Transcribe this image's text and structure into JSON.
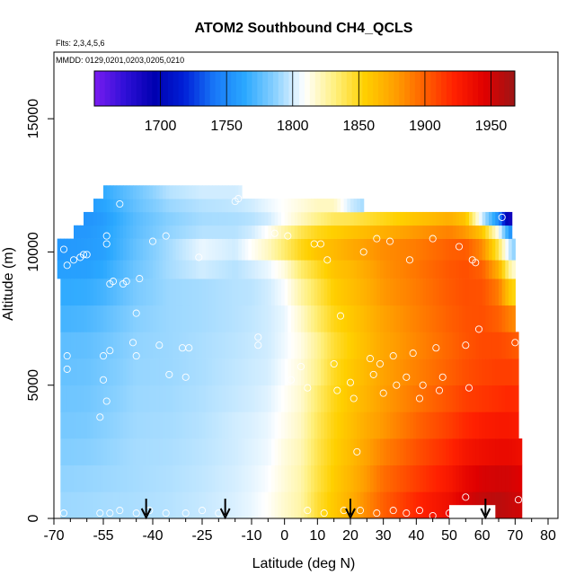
{
  "chart_data": {
    "type": "heatmap",
    "title": "ATOM2 Southbound CH4_QCLS",
    "subtitle_lines": [
      "Flts: 2,3,4,5,6",
      "MMDD: 0129,0201,0203,0205,0210"
    ],
    "xlabel": "Latitude (deg N)",
    "ylabel": "Altitude (m)",
    "xlim": [
      -70,
      83
    ],
    "ylim": [
      0,
      17500
    ],
    "x_ticks": [
      -70,
      -55,
      -40,
      -25,
      -10,
      0,
      10,
      20,
      30,
      40,
      50,
      60,
      70,
      80
    ],
    "x_tick_labels": [
      "-70",
      "-55",
      "-40",
      "-25",
      "-10",
      "0",
      "10",
      "20",
      "30",
      "40",
      "50",
      "60",
      "70",
      "80"
    ],
    "x_minor_ticks": [
      -65,
      -60,
      -50,
      -45,
      -35,
      -30,
      -20,
      -15,
      -5,
      5,
      15,
      25,
      35,
      45,
      55,
      65,
      75
    ],
    "y_ticks": [
      0,
      5000,
      10000,
      15000
    ],
    "y_tick_labels": [
      "0",
      "5000",
      "10000",
      "15000"
    ],
    "colorbar": {
      "min": 1650,
      "max": 1968,
      "ticks": [
        1700,
        1750,
        1800,
        1850,
        1900,
        1950
      ],
      "tick_labels": [
        "1700",
        "1750",
        "1800",
        "1850",
        "1900",
        "1950"
      ],
      "colors": [
        "#7a1cf0",
        "#3010d8",
        "#0000b0",
        "#0020d8",
        "#1878f8",
        "#2aa8ff",
        "#88d0ff",
        "#ffffff",
        "#fff080",
        "#ffd000",
        "#ffa000",
        "#ff6000",
        "#ff2000",
        "#e00000",
        "#9c1616"
      ]
    },
    "grid": false,
    "profile_arrows_latitude": [
      -42,
      -18,
      20,
      61
    ],
    "layers": [
      {
        "ybot": 0,
        "ytop": 1000,
        "xmin": -68,
        "xmax": 72
      },
      {
        "ybot": 1000,
        "ytop": 2000,
        "xmin": -68,
        "xmax": 72
      },
      {
        "ybot": 2000,
        "ytop": 3000,
        "xmin": -68,
        "xmax": 72
      },
      {
        "ybot": 3000,
        "ytop": 4000,
        "xmin": -68,
        "xmax": 71
      },
      {
        "ybot": 4000,
        "ytop": 5000,
        "xmin": -68,
        "xmax": 71
      },
      {
        "ybot": 5000,
        "ytop": 6000,
        "xmin": -68,
        "xmax": 71
      },
      {
        "ybot": 6000,
        "ytop": 7000,
        "xmin": -68,
        "xmax": 71
      },
      {
        "ybot": 7000,
        "ytop": 8000,
        "xmin": -68,
        "xmax": 70
      },
      {
        "ybot": 8000,
        "ytop": 9000,
        "xmin": -68,
        "xmax": 70
      },
      {
        "ybot": 9000,
        "ytop": 9700,
        "xmin": -69,
        "xmax": 70
      },
      {
        "ybot": 9700,
        "ytop": 10500,
        "xmin": -69,
        "xmax": 70
      },
      {
        "ybot": 10500,
        "ytop": 11000,
        "xmin": -64,
        "xmax": 69
      },
      {
        "ybot": 11000,
        "ytop": 11500,
        "xmin": -61,
        "xmax": 69
      },
      {
        "ybot": 11500,
        "ytop": 12000,
        "xmin": -58,
        "xmax": 24
      },
      {
        "ybot": 12000,
        "ytop": 12500,
        "xmin": -55,
        "xmax": -13
      }
    ],
    "missing_region": {
      "x": [
        50,
        64
      ],
      "y": [
        0,
        500
      ]
    },
    "profiles": [
      {
        "lat": -68,
        "v": [
          1790,
          1788,
          1785,
          1782,
          1780,
          1778,
          1776,
          1770,
          1765,
          1760,
          1756,
          1755,
          1755,
          1756,
          1760
        ]
      },
      {
        "lat": -60,
        "v": [
          1791,
          1789,
          1786,
          1783,
          1781,
          1779,
          1777,
          1772,
          1766,
          1760,
          1758,
          1756,
          1754,
          1757,
          1762
        ]
      },
      {
        "lat": -55,
        "v": [
          1792,
          1790,
          1788,
          1786,
          1784,
          1782,
          1780,
          1776,
          1770,
          1764,
          1760,
          1760,
          1758,
          1762,
          1765
        ]
      },
      {
        "lat": -45,
        "v": [
          1793,
          1792,
          1792,
          1791,
          1790,
          1789,
          1788,
          1786,
          1783,
          1780,
          1778,
          1776,
          1775,
          1778,
          1780
        ]
      },
      {
        "lat": -35,
        "v": [
          1795,
          1794,
          1793,
          1792,
          1791,
          1790,
          1790,
          1790,
          1790,
          1792,
          1792,
          1788,
          1786,
          1790,
          1795
        ]
      },
      {
        "lat": -25,
        "v": [
          1798,
          1797,
          1796,
          1795,
          1794,
          1793,
          1793,
          1792,
          1792,
          1800,
          1805,
          1795,
          1792,
          1795,
          1800
        ]
      },
      {
        "lat": -15,
        "v": [
          1802,
          1801,
          1800,
          1800,
          1798,
          1797,
          1796,
          1795,
          1795,
          1795,
          1800,
          1795,
          1793,
          1797,
          1800
        ]
      },
      {
        "lat": -10,
        "v": [
          1805,
          1804,
          1803,
          1802,
          1800,
          1799,
          1798,
          1797,
          1796,
          1800,
          1810,
          1800,
          1795,
          1800,
          1805
        ]
      },
      {
        "lat": -5,
        "v": [
          1810,
          1808,
          1806,
          1805,
          1803,
          1801,
          1800,
          1800,
          1800,
          1805,
          1820,
          1810,
          1800,
          1805,
          1808
        ]
      },
      {
        "lat": 0,
        "v": [
          1818,
          1816,
          1815,
          1812,
          1810,
          1808,
          1806,
          1805,
          1808,
          1815,
          1835,
          1825,
          1810,
          1810,
          1810
        ]
      },
      {
        "lat": 5,
        "v": [
          1825,
          1824,
          1822,
          1820,
          1818,
          1816,
          1814,
          1818,
          1825,
          1835,
          1850,
          1840,
          1820,
          1815,
          1810
        ]
      },
      {
        "lat": 10,
        "v": [
          1845,
          1842,
          1840,
          1838,
          1835,
          1830,
          1828,
          1835,
          1840,
          1848,
          1860,
          1850,
          1830,
          1820,
          1810
        ]
      },
      {
        "lat": 15,
        "v": [
          1858,
          1856,
          1854,
          1852,
          1850,
          1848,
          1845,
          1850,
          1855,
          1860,
          1865,
          1855,
          1838,
          1820,
          1810
        ]
      },
      {
        "lat": 20,
        "v": [
          1870,
          1867,
          1864,
          1862,
          1860,
          1858,
          1855,
          1858,
          1862,
          1865,
          1872,
          1860,
          1840,
          1800,
          1790
        ]
      },
      {
        "lat": 25,
        "v": [
          1885,
          1880,
          1876,
          1872,
          1868,
          1866,
          1864,
          1866,
          1870,
          1873,
          1878,
          1865,
          1845,
          1790,
          1790
        ]
      },
      {
        "lat": 30,
        "v": [
          1900,
          1895,
          1888,
          1880,
          1878,
          1876,
          1874,
          1876,
          1880,
          1882,
          1884,
          1870,
          1850,
          1790,
          1790
        ]
      },
      {
        "lat": 40,
        "v": [
          1920,
          1912,
          1905,
          1898,
          1892,
          1888,
          1886,
          1888,
          1890,
          1892,
          1890,
          1880,
          1860,
          1790,
          1790
        ]
      },
      {
        "lat": 50,
        "v": [
          1935,
          1928,
          1920,
          1912,
          1905,
          1900,
          1898,
          1900,
          1902,
          1903,
          1900,
          1888,
          1870,
          1790,
          1790
        ]
      },
      {
        "lat": 55,
        "v": [
          1948,
          1940,
          1930,
          1920,
          1912,
          1906,
          1904,
          1905,
          1906,
          1906,
          1902,
          1880,
          1860,
          1790,
          1790
        ]
      },
      {
        "lat": 60,
        "v": [
          1955,
          1948,
          1935,
          1925,
          1915,
          1910,
          1908,
          1906,
          1905,
          1900,
          1885,
          1860,
          1800,
          1790,
          1790
        ]
      },
      {
        "lat": 65,
        "v": [
          1958,
          1950,
          1938,
          1928,
          1918,
          1912,
          1908,
          1900,
          1890,
          1870,
          1840,
          1810,
          1750,
          1790,
          1790
        ]
      },
      {
        "lat": 68,
        "v": [
          1955,
          1950,
          1938,
          1928,
          1920,
          1912,
          1905,
          1890,
          1860,
          1830,
          1800,
          1760,
          1690,
          1790,
          1790
        ]
      },
      {
        "lat": 72,
        "v": [
          1950,
          1945,
          1935,
          1925,
          1918,
          1910,
          1900,
          1880,
          1840,
          1800,
          1770,
          1720,
          1680,
          1790,
          1790
        ]
      }
    ],
    "observations": [
      [
        -67,
        200
      ],
      [
        -66,
        5600
      ],
      [
        -66,
        6100
      ],
      [
        -67,
        10100
      ],
      [
        -66,
        9500
      ],
      [
        -64,
        9700
      ],
      [
        -62,
        9800
      ],
      [
        -61,
        9900
      ],
      [
        -60,
        9900
      ],
      [
        -56,
        3800
      ],
      [
        -55,
        5200
      ],
      [
        -55,
        6100
      ],
      [
        -54,
        4400
      ],
      [
        -53,
        6300
      ],
      [
        -54,
        10300
      ],
      [
        -54,
        10600
      ],
      [
        -53,
        8800
      ],
      [
        -52,
        8900
      ],
      [
        -50,
        11800
      ],
      [
        -49,
        8800
      ],
      [
        -48,
        8900
      ],
      [
        -46,
        6600
      ],
      [
        -45,
        6100
      ],
      [
        -45,
        7700
      ],
      [
        -44,
        9000
      ],
      [
        -40,
        10400
      ],
      [
        -38,
        6500
      ],
      [
        -36,
        10600
      ],
      [
        -35,
        5400
      ],
      [
        -31,
        6400
      ],
      [
        -29,
        6400
      ],
      [
        -30,
        5300
      ],
      [
        -26,
        9800
      ],
      [
        -56,
        200
      ],
      [
        -53,
        200
      ],
      [
        -50,
        300
      ],
      [
        -45,
        200
      ],
      [
        -41,
        300
      ],
      [
        -36,
        200
      ],
      [
        -30,
        200
      ],
      [
        -25,
        300
      ],
      [
        -20,
        200
      ],
      [
        -15,
        11900
      ],
      [
        -14,
        12000
      ],
      [
        -8,
        6500
      ],
      [
        -8,
        6800
      ],
      [
        -3,
        10700
      ],
      [
        1,
        10600
      ],
      [
        2,
        5200
      ],
      [
        5,
        5700
      ],
      [
        7,
        4900
      ],
      [
        9,
        10300
      ],
      [
        11,
        10300
      ],
      [
        13,
        9700
      ],
      [
        15,
        5800
      ],
      [
        16,
        4800
      ],
      [
        17,
        7600
      ],
      [
        18,
        300
      ],
      [
        20,
        5100
      ],
      [
        21,
        4500
      ],
      [
        22,
        2500
      ],
      [
        24,
        10000
      ],
      [
        26,
        6000
      ],
      [
        27,
        5400
      ],
      [
        29,
        5800
      ],
      [
        28,
        10500
      ],
      [
        30,
        4700
      ],
      [
        32,
        10400
      ],
      [
        33,
        6100
      ],
      [
        34,
        5000
      ],
      [
        37,
        5300
      ],
      [
        38,
        9700
      ],
      [
        39,
        6200
      ],
      [
        41,
        4500
      ],
      [
        42,
        5000
      ],
      [
        45,
        10500
      ],
      [
        46,
        6400
      ],
      [
        47,
        4800
      ],
      [
        48,
        5300
      ],
      [
        53,
        10200
      ],
      [
        55,
        6500
      ],
      [
        56,
        4900
      ],
      [
        57,
        9700
      ],
      [
        58,
        9600
      ],
      [
        59,
        7100
      ],
      [
        23,
        300
      ],
      [
        28,
        200
      ],
      [
        33,
        300
      ],
      [
        37,
        200
      ],
      [
        41,
        300
      ],
      [
        45,
        100
      ],
      [
        50,
        200
      ],
      [
        55,
        800
      ],
      [
        70,
        6600
      ],
      [
        71,
        700
      ],
      [
        66,
        11300
      ],
      [
        12,
        200
      ],
      [
        7,
        300
      ]
    ]
  }
}
